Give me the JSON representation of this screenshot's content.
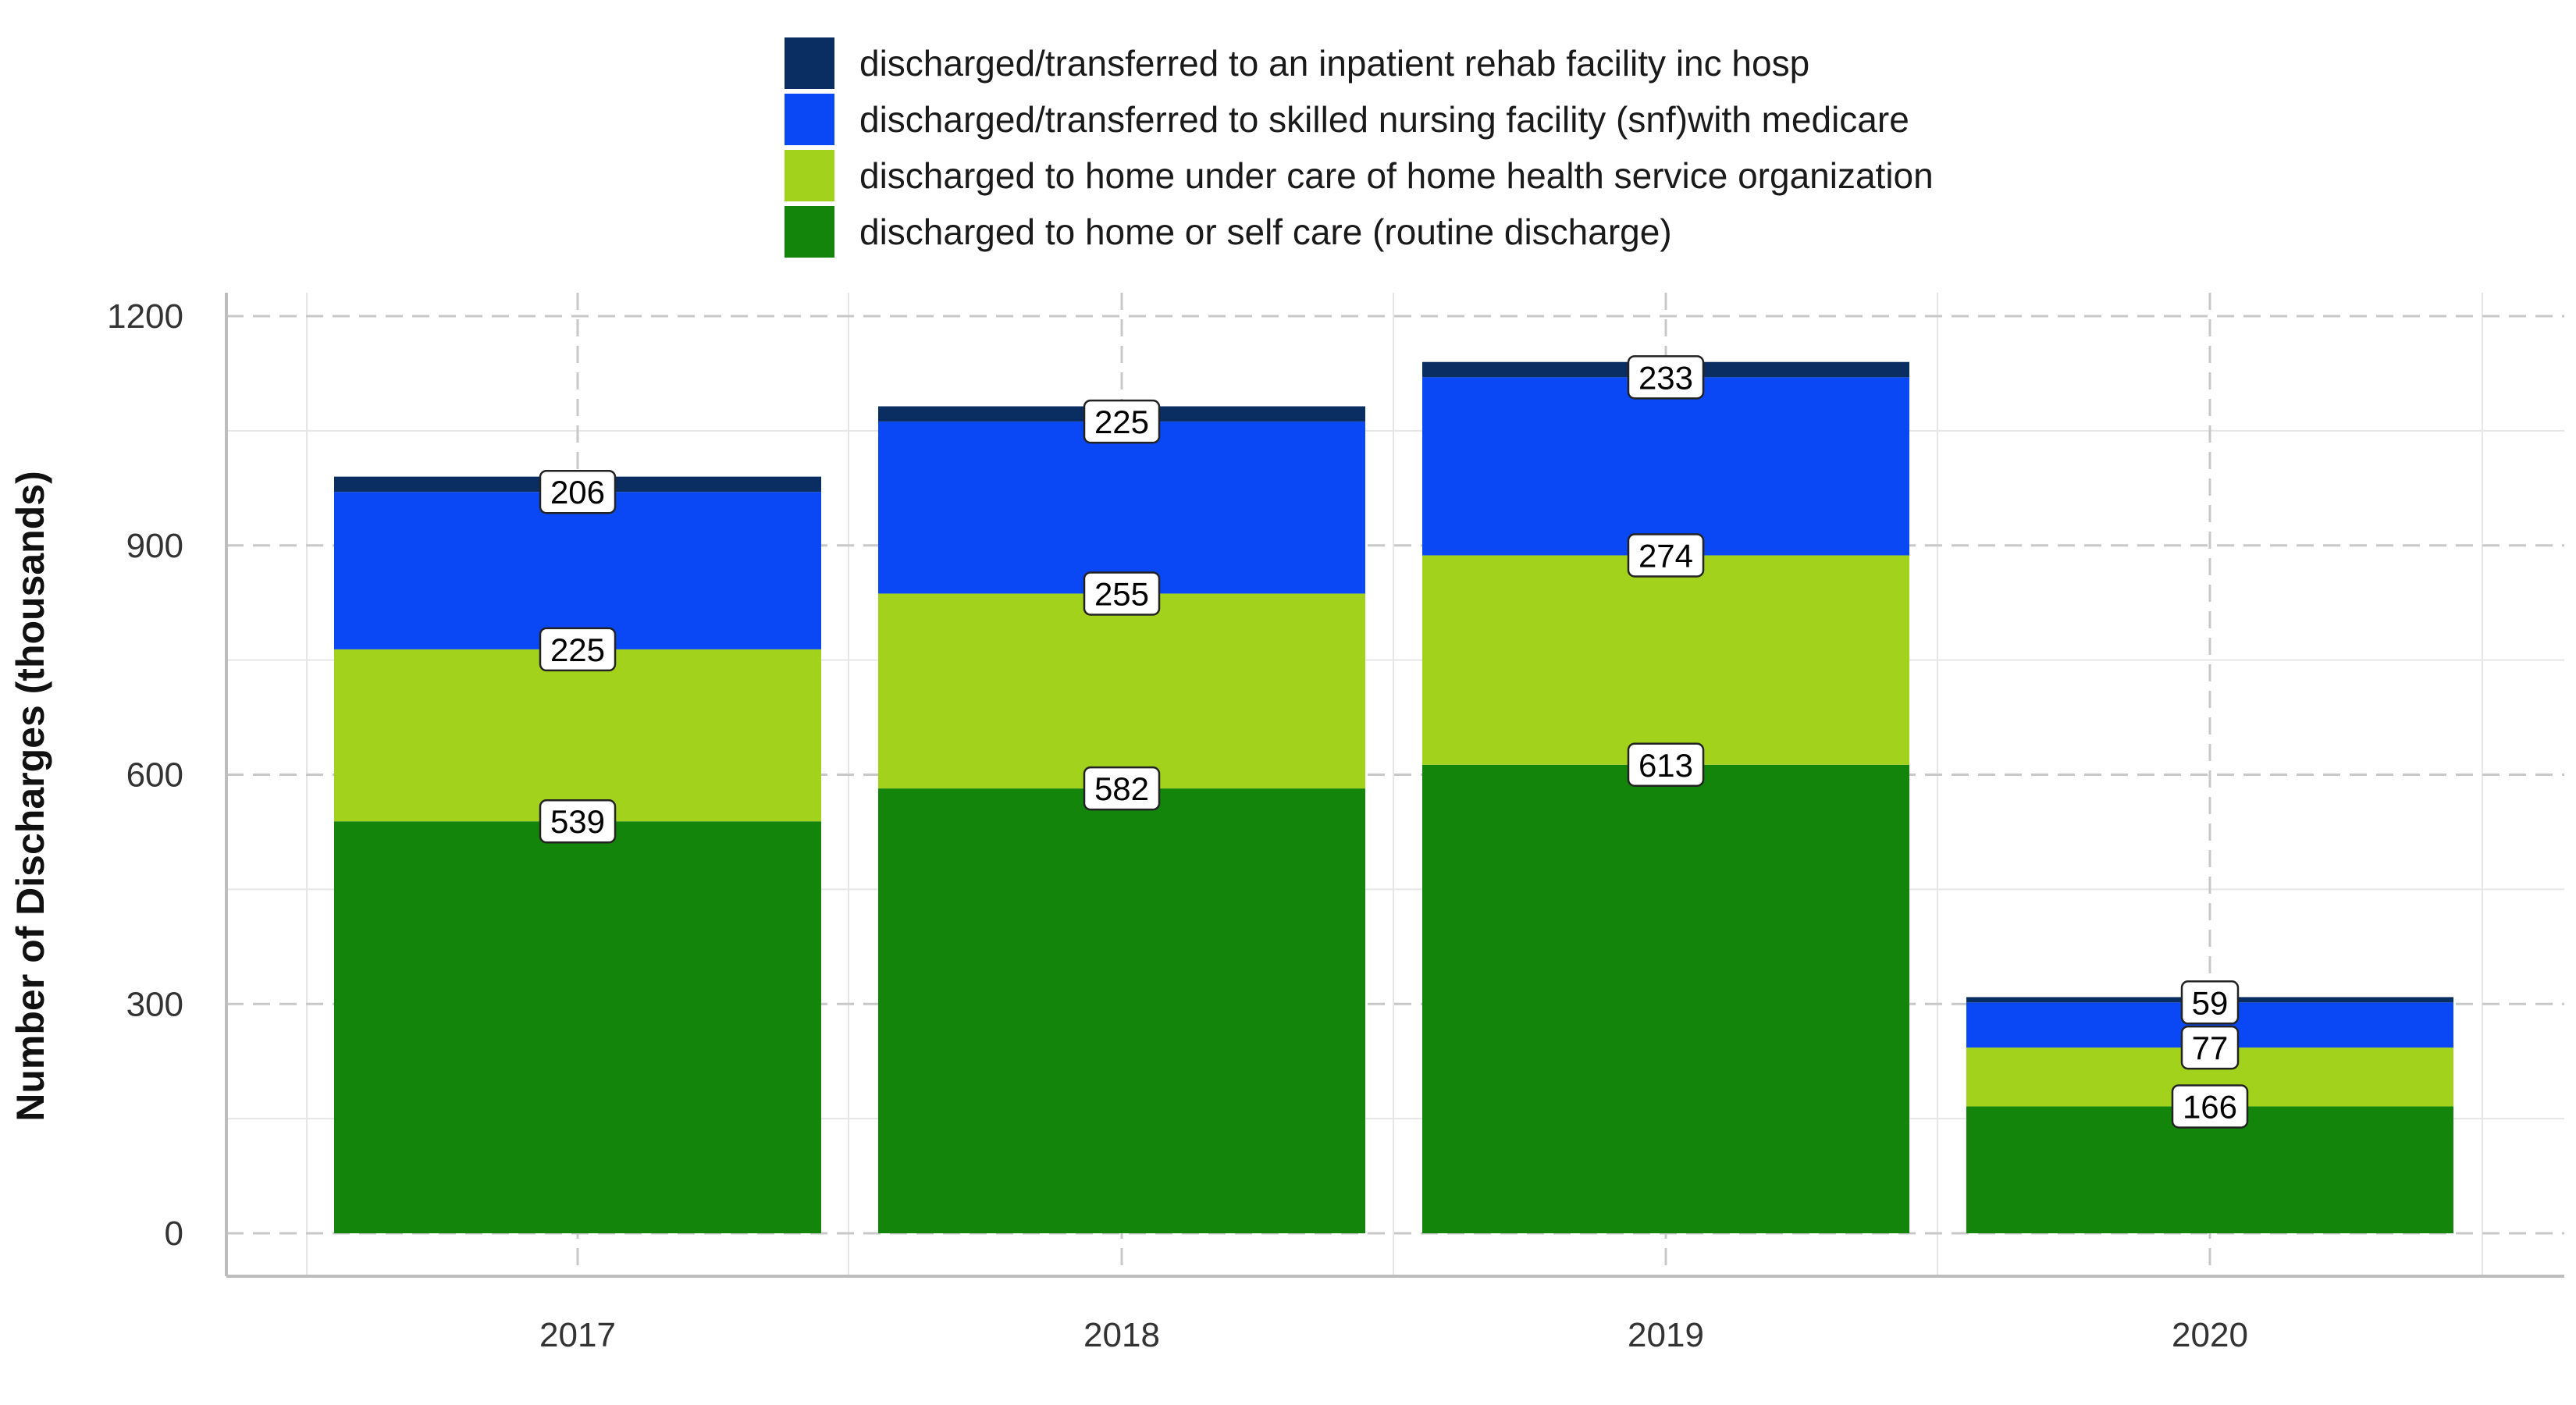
{
  "chart_data": {
    "type": "bar",
    "stacked": true,
    "categories": [
      "2017",
      "2018",
      "2019",
      "2020"
    ],
    "series": [
      {
        "name": "discharged to home or self care (routine discharge)",
        "color": "#13850b",
        "values": [
          539,
          582,
          613,
          166
        ]
      },
      {
        "name": "discharged to home under care of home health service organization",
        "color": "#a3d21c",
        "values": [
          225,
          255,
          274,
          77
        ]
      },
      {
        "name": "discharged/transferred to skilled nursing facility (snf)with medicare",
        "color": "#0a48f5",
        "values": [
          206,
          225,
          233,
          59
        ]
      },
      {
        "name": "discharged/transferred to an inpatient rehab facility inc hosp",
        "color": "#0a2d62",
        "values": [
          20,
          20,
          20,
          7
        ]
      }
    ],
    "data_labels": [
      [
        "539",
        "582",
        "613",
        "166"
      ],
      [
        "225",
        "255",
        "274",
        "77"
      ],
      [
        "206",
        "225",
        "233",
        "59"
      ]
    ],
    "legend_order": [
      3,
      2,
      1,
      0
    ],
    "legend_position": "top",
    "ylabel": "Number of Discharges (thousands)",
    "xlabel": "",
    "ylim": [
      0,
      1200
    ],
    "yticks": [
      0,
      300,
      600,
      900,
      1200
    ],
    "ytick_labels": [
      "0",
      "300",
      "600",
      "900",
      "1200"
    ],
    "grid": true
  }
}
